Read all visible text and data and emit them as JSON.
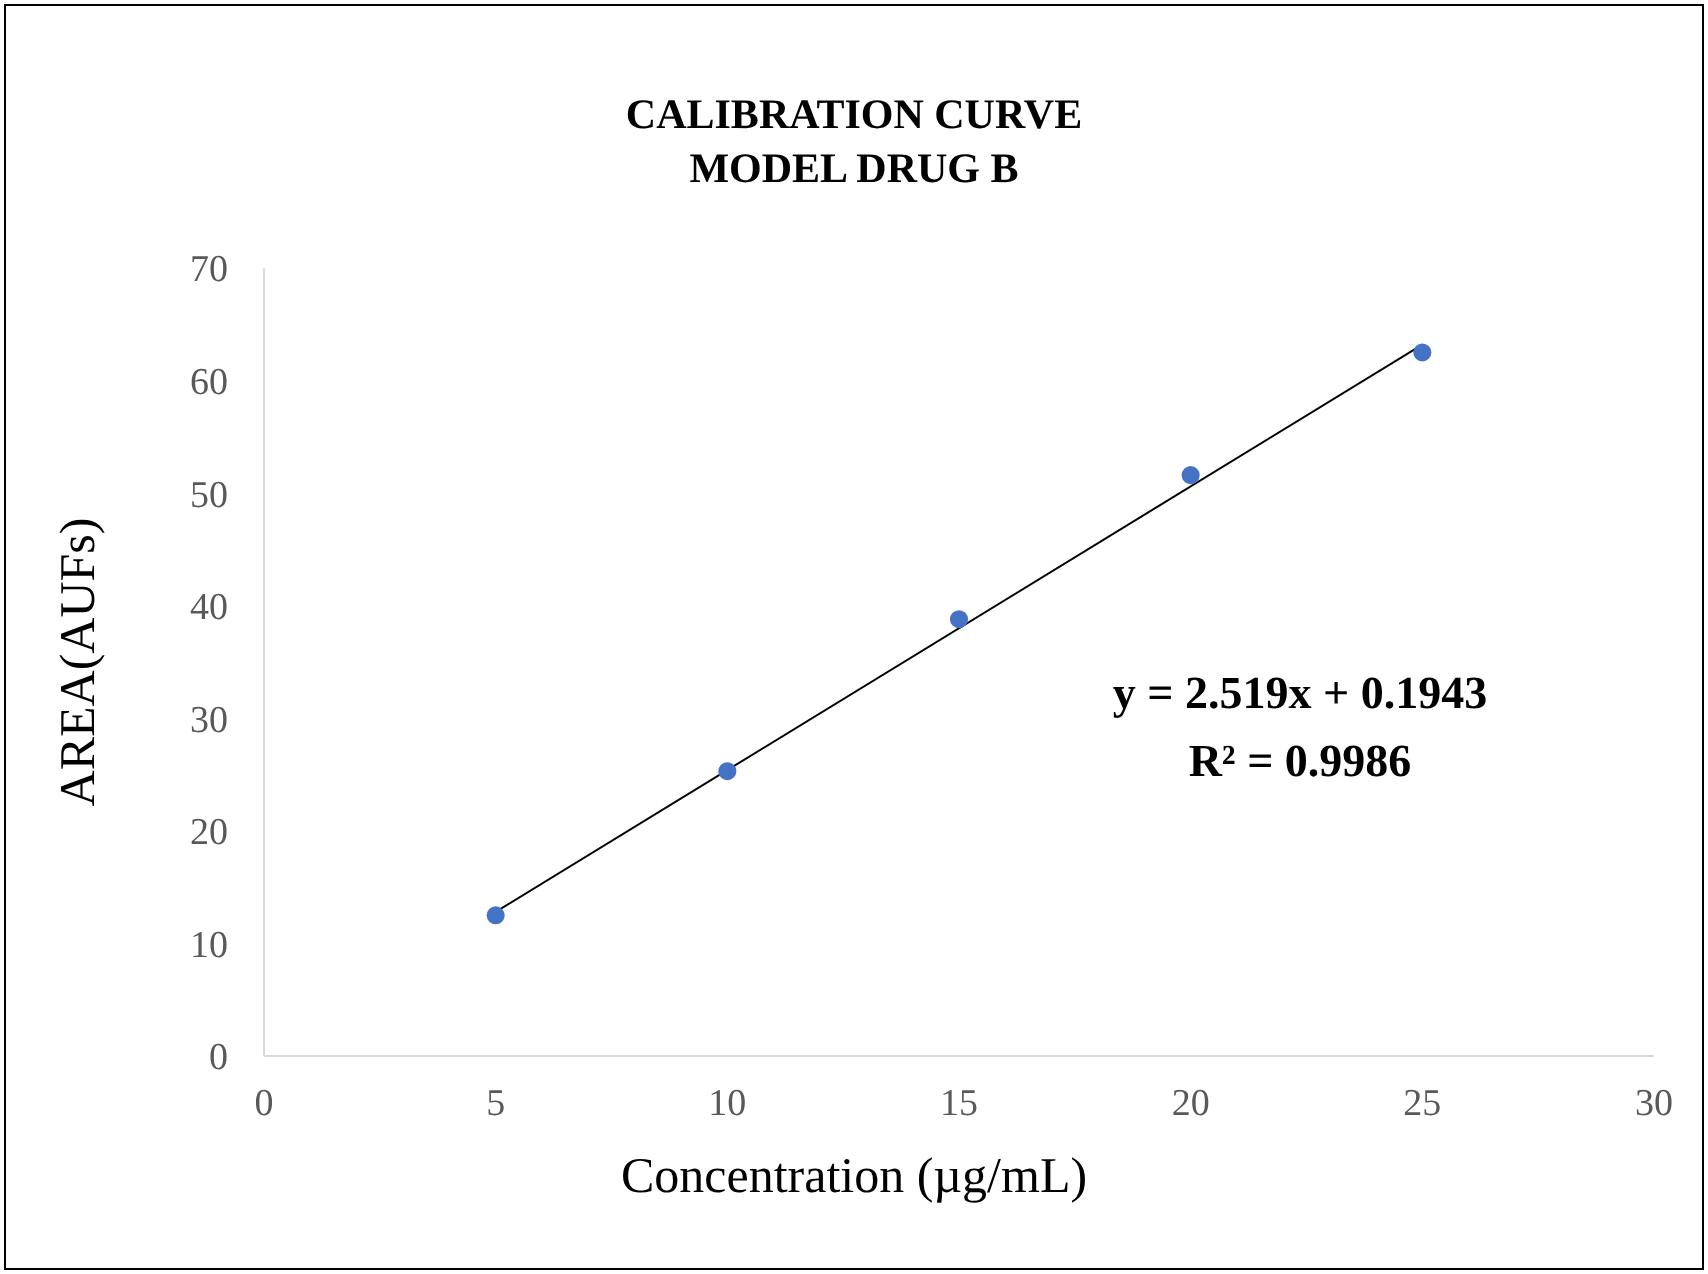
{
  "chart_data": {
    "type": "scatter",
    "title": "CALIBRATION CURVE",
    "subtitle": "MODEL DRUG B",
    "xlabel": "Concentration (µg/mL)",
    "ylabel": "AREA(AUFs)",
    "x": [
      5,
      10,
      15,
      20,
      25
    ],
    "series": [
      {
        "color": "#4472c4",
        "values": [
          12.5,
          25.3,
          38.8,
          51.6,
          62.5
        ]
      },
      {
        "type": "line",
        "color": "#000000",
        "marker": "none",
        "x": [
          5,
          25
        ],
        "values": [
          12.8,
          63.2
        ]
      }
    ],
    "annotations": [
      "y = 2.519x + 0.1943",
      "R² = 0.9986"
    ],
    "xlim": [
      0,
      30
    ],
    "xticks": [
      0,
      5,
      10,
      15,
      20,
      25,
      30
    ],
    "ylim": [
      0,
      70
    ],
    "yticks": [
      0,
      10,
      20,
      30,
      40,
      50,
      60,
      70
    ],
    "grid": false,
    "legend": false,
    "marker": "circle",
    "line_style": "solid"
  }
}
